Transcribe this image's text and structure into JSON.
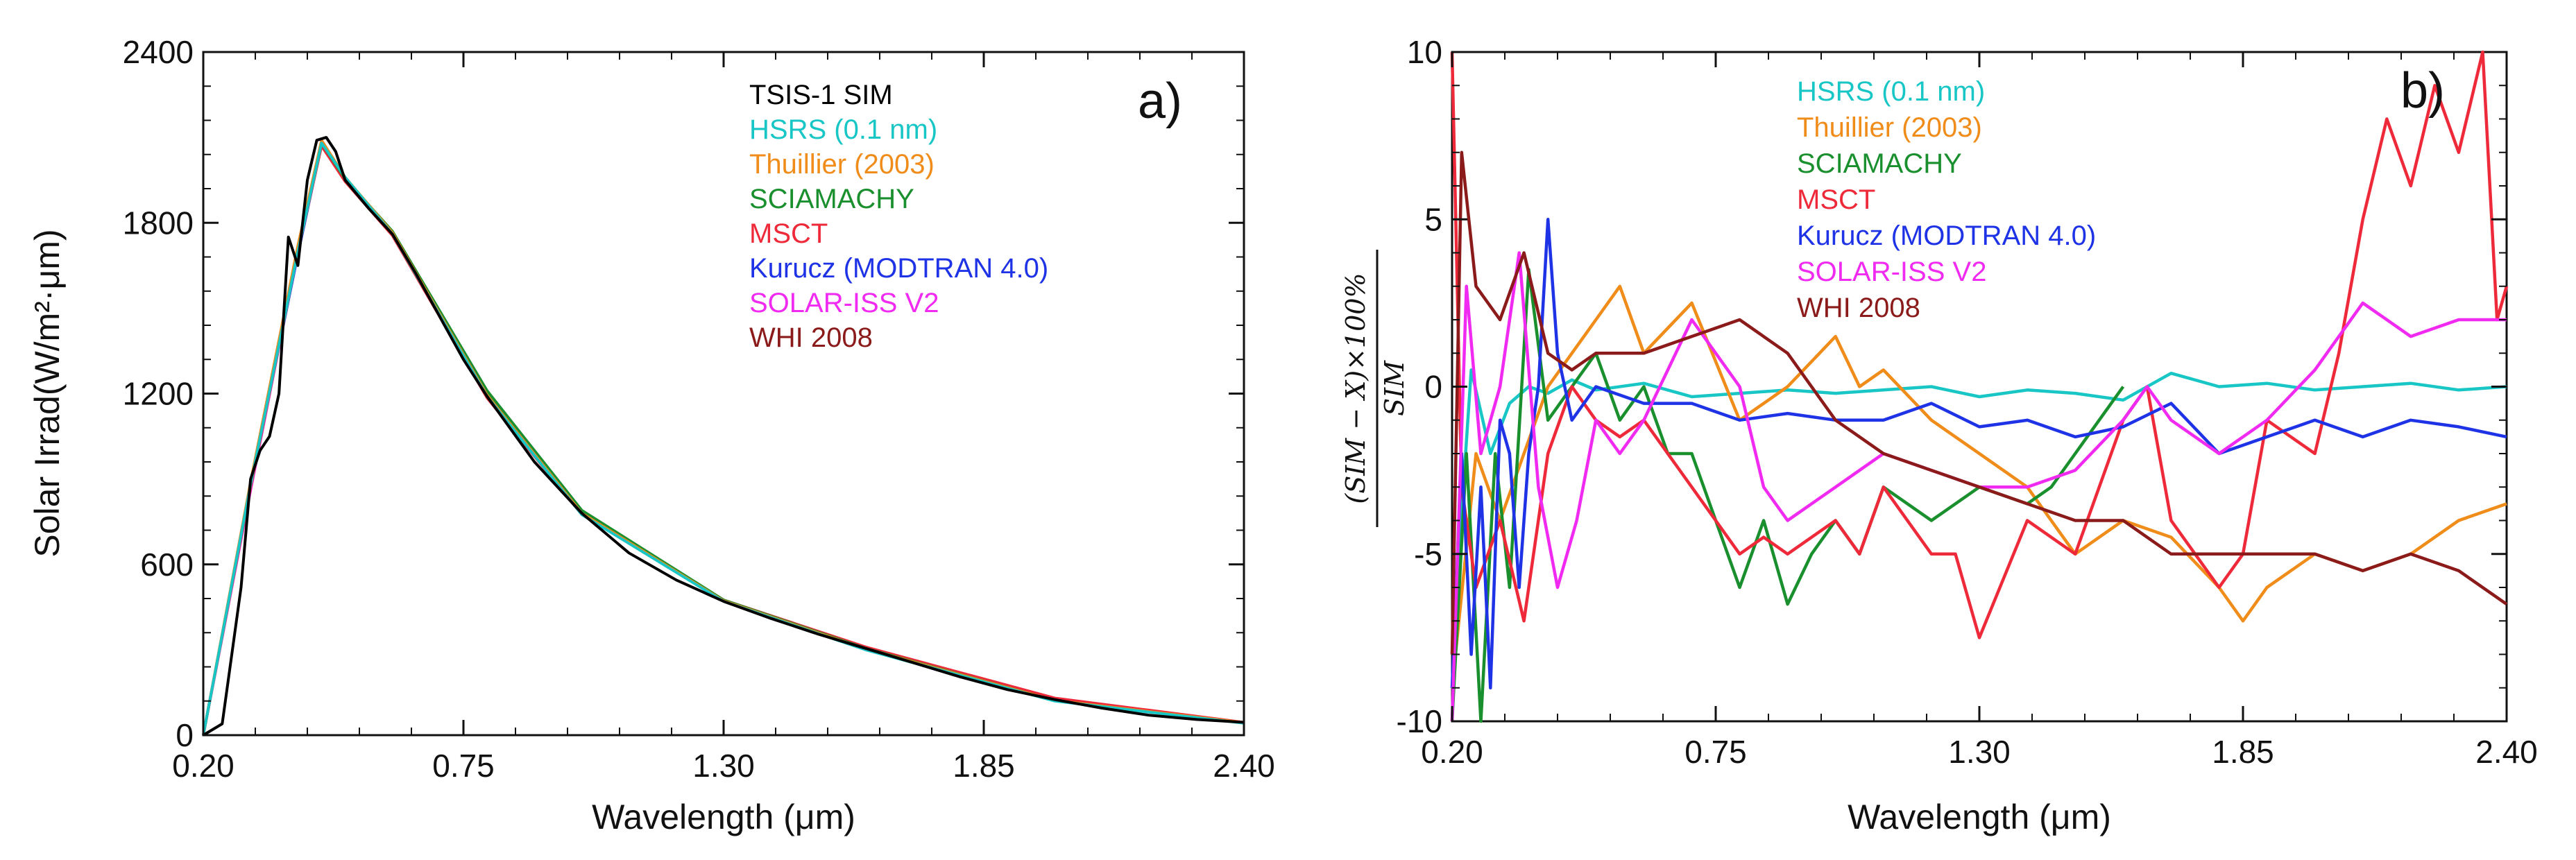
{
  "chart_data": [
    {
      "type": "line",
      "panel_label": "a)",
      "xlabel": "Wavelength (μm)",
      "ylabel": "Solar Irrad(W/m²·μm)",
      "xlim": [
        0.2,
        2.4
      ],
      "ylim": [
        0,
        2400
      ],
      "x_ticks": [
        "0.20",
        "0.75",
        "1.30",
        "1.85",
        "2.40"
      ],
      "y_ticks": [
        "0",
        "600",
        "1200",
        "1800",
        "2400"
      ],
      "series": [
        {
          "name": "TSIS-1 SIM",
          "color": "#000000",
          "x": [
            0.2,
            0.24,
            0.26,
            0.28,
            0.3,
            0.32,
            0.34,
            0.36,
            0.38,
            0.4,
            0.42,
            0.44,
            0.46,
            0.48,
            0.5,
            0.55,
            0.6,
            0.65,
            0.7,
            0.75,
            0.8,
            0.9,
            1.0,
            1.1,
            1.2,
            1.3,
            1.4,
            1.5,
            1.6,
            1.7,
            1.8,
            1.9,
            2.0,
            2.1,
            2.2,
            2.3,
            2.4
          ],
          "values": [
            0,
            40,
            280,
            520,
            900,
            1000,
            1050,
            1200,
            1750,
            1650,
            1950,
            2090,
            2100,
            2050,
            1950,
            1850,
            1760,
            1620,
            1470,
            1320,
            1190,
            960,
            780,
            640,
            545,
            470,
            410,
            355,
            305,
            255,
            205,
            160,
            125,
            95,
            70,
            55,
            45
          ]
        },
        {
          "name": "HSRS (0.1 nm)",
          "color": "#19c6c6",
          "x": [
            0.2,
            0.3,
            0.4,
            0.45,
            0.5,
            0.6,
            0.8,
            1.0,
            1.3,
            1.6,
            2.0,
            2.4
          ],
          "values": [
            0,
            880,
            1700,
            2080,
            1960,
            1760,
            1190,
            775,
            470,
            300,
            120,
            42
          ]
        },
        {
          "name": "Thuillier (2003)",
          "color": "#f08c1a",
          "x": [
            0.2,
            0.3,
            0.4,
            0.45,
            0.5,
            0.6,
            0.8,
            1.0,
            1.3,
            1.6,
            2.0,
            2.4
          ],
          "values": [
            0,
            890,
            1720,
            2090,
            1960,
            1765,
            1195,
            780,
            472,
            303,
            122,
            44
          ]
        },
        {
          "name": "SCIAMACHY",
          "color": "#1a8f2e",
          "x": [
            0.2,
            0.3,
            0.4,
            0.45,
            0.5,
            0.6,
            0.8,
            1.0,
            1.3,
            1.6,
            2.0,
            2.4
          ],
          "values": [
            0,
            880,
            1710,
            2080,
            1955,
            1770,
            1210,
            790,
            475,
            305,
            122,
            43
          ]
        },
        {
          "name": "MSCT",
          "color": "#ee2a3a",
          "x": [
            0.2,
            0.3,
            0.4,
            0.45,
            0.5,
            0.6,
            0.8,
            1.0,
            1.3,
            1.6,
            2.0,
            2.4
          ],
          "values": [
            0,
            870,
            1700,
            2070,
            1945,
            1755,
            1185,
            775,
            475,
            310,
            130,
            45
          ]
        },
        {
          "name": "Kurucz (MODTRAN 4.0)",
          "color": "#1f33e6",
          "x": [
            0.2,
            0.3,
            0.4,
            0.45,
            0.5,
            0.6,
            0.8,
            1.0,
            1.3,
            1.6,
            2.0,
            2.4
          ],
          "values": [
            0,
            880,
            1690,
            2075,
            1950,
            1760,
            1190,
            778,
            471,
            302,
            121,
            43
          ]
        },
        {
          "name": "SOLAR-ISS V2",
          "color": "#f02af0",
          "x": [
            0.2,
            0.3,
            0.4,
            0.45,
            0.5,
            0.6,
            0.8,
            1.0,
            1.3,
            1.6,
            2.0,
            2.4
          ],
          "values": [
            0,
            860,
            1700,
            2080,
            1950,
            1760,
            1190,
            778,
            472,
            302,
            121,
            43
          ]
        },
        {
          "name": "WHI 2008",
          "color": "#8b1a1a",
          "x": [
            0.2,
            0.3,
            0.4,
            0.45,
            0.5,
            0.6,
            0.8,
            1.0,
            1.3,
            1.6,
            2.0,
            2.4
          ],
          "values": [
            0,
            885,
            1715,
            2085,
            1958,
            1762,
            1192,
            779,
            472,
            302,
            121,
            43
          ]
        }
      ]
    },
    {
      "type": "line",
      "panel_label": "b)",
      "xlabel": "Wavelength (μm)",
      "ylabel_numerator": "(SIM − X)×100%",
      "ylabel_denominator": "SIM",
      "xlim": [
        0.2,
        2.4
      ],
      "ylim": [
        -10,
        10
      ],
      "x_ticks": [
        "0.20",
        "0.75",
        "1.30",
        "1.85",
        "2.40"
      ],
      "y_ticks": [
        "-10",
        "-5",
        "0",
        "5",
        "10"
      ],
      "series": [
        {
          "name": "HSRS (0.1 nm)",
          "color": "#19c6c6",
          "x": [
            0.2,
            0.24,
            0.28,
            0.32,
            0.36,
            0.4,
            0.45,
            0.5,
            0.6,
            0.7,
            0.8,
            0.9,
            1.0,
            1.1,
            1.2,
            1.3,
            1.4,
            1.5,
            1.6,
            1.7,
            1.8,
            1.9,
            2.0,
            2.1,
            2.2,
            2.3,
            2.4
          ],
          "values": [
            -8,
            0.5,
            -2,
            -0.5,
            0,
            -0.2,
            0.2,
            -0.1,
            0.1,
            -0.3,
            -0.2,
            -0.1,
            -0.2,
            -0.1,
            0,
            -0.3,
            -0.1,
            -0.2,
            -0.4,
            0.4,
            0,
            0.1,
            -0.1,
            0,
            0.1,
            -0.1,
            0
          ]
        },
        {
          "name": "Thuillier (2003)",
          "color": "#f08c1a",
          "x": [
            0.2,
            0.25,
            0.3,
            0.35,
            0.4,
            0.5,
            0.55,
            0.6,
            0.7,
            0.8,
            0.9,
            1.0,
            1.05,
            1.1,
            1.2,
            1.3,
            1.4,
            1.5,
            1.6,
            1.7,
            1.8,
            1.85,
            1.9,
            2.0,
            2.1,
            2.2,
            2.3,
            2.4
          ],
          "values": [
            -9,
            -2,
            -4,
            -2,
            0,
            2,
            3,
            1,
            2.5,
            -1,
            0,
            1.5,
            0,
            0.5,
            -1,
            -2,
            -3,
            -5,
            -4,
            -4.5,
            -6,
            -7,
            -6,
            -5,
            -5.5,
            -5,
            -4,
            -3.5
          ]
        },
        {
          "name": "SCIAMACHY",
          "color": "#1a8f2e",
          "x": [
            0.2,
            0.23,
            0.26,
            0.29,
            0.32,
            0.36,
            0.4,
            0.45,
            0.5,
            0.55,
            0.6,
            0.65,
            0.7,
            0.75,
            0.8,
            0.85,
            0.9,
            0.95,
            1.0,
            1.05,
            1.1,
            1.2,
            1.3,
            1.4,
            1.45,
            1.5,
            1.55,
            1.6
          ],
          "values": [
            -10,
            -2,
            -10,
            -2,
            -6,
            3.5,
            -1,
            0,
            1,
            -1,
            0,
            -2,
            -2,
            -4,
            -6,
            -4,
            -6.5,
            -5,
            -4,
            -5,
            -3,
            -4,
            -3,
            -3.5,
            -3,
            -2,
            -1,
            0
          ]
        },
        {
          "name": "MSCT",
          "color": "#ee2a3a",
          "x": [
            0.2,
            0.22,
            0.25,
            0.3,
            0.35,
            0.4,
            0.45,
            0.5,
            0.55,
            0.6,
            0.7,
            0.8,
            0.85,
            0.9,
            1.0,
            1.05,
            1.1,
            1.2,
            1.25,
            1.3,
            1.4,
            1.5,
            1.6,
            1.65,
            1.7,
            1.8,
            1.85,
            1.9,
            2.0,
            2.05,
            2.1,
            2.15,
            2.2,
            2.25,
            2.3,
            2.35,
            2.38,
            2.4
          ],
          "values": [
            10,
            -3,
            -6,
            -4,
            -7,
            -2,
            0,
            -1,
            -1.5,
            -1,
            -3,
            -5,
            -4.5,
            -5,
            -4,
            -5,
            -3,
            -5,
            -5,
            -7.5,
            -4,
            -5,
            -1,
            0,
            -4,
            -6,
            -5,
            -1,
            -2,
            1,
            5,
            8,
            6,
            9,
            7,
            10,
            2,
            3
          ]
        },
        {
          "name": "Kurucz (MODTRAN 4.0)",
          "color": "#1f33e6",
          "x": [
            0.2,
            0.22,
            0.24,
            0.26,
            0.28,
            0.3,
            0.32,
            0.34,
            0.36,
            0.38,
            0.4,
            0.42,
            0.45,
            0.5,
            0.6,
            0.7,
            0.8,
            0.9,
            1.0,
            1.1,
            1.2,
            1.3,
            1.4,
            1.5,
            1.6,
            1.7,
            1.8,
            1.9,
            2.0,
            2.1,
            2.2,
            2.3,
            2.4
          ],
          "values": [
            -9,
            -2,
            -8,
            -3,
            -9,
            -1,
            -2,
            -6,
            -2,
            0,
            5,
            1,
            -1,
            0,
            -0.5,
            -0.5,
            -1,
            -0.8,
            -1,
            -1,
            -0.5,
            -1.2,
            -1,
            -1.5,
            -1.2,
            -0.5,
            -2,
            -1.5,
            -1,
            -1.5,
            -1,
            -1.2,
            -1.5
          ]
        },
        {
          "name": "SOLAR-ISS V2",
          "color": "#f02af0",
          "x": [
            0.2,
            0.23,
            0.26,
            0.3,
            0.34,
            0.38,
            0.42,
            0.46,
            0.5,
            0.55,
            0.6,
            0.7,
            0.8,
            0.85,
            0.9,
            1.0,
            1.1,
            1.2,
            1.3,
            1.4,
            1.5,
            1.6,
            1.65,
            1.7,
            1.8,
            1.9,
            2.0,
            2.1,
            2.2,
            2.3,
            2.4
          ],
          "values": [
            -10,
            3,
            -2,
            0,
            4,
            -3,
            -6,
            -4,
            -1,
            -2,
            -1,
            2,
            0,
            -3,
            -4,
            -3,
            -2,
            -2.5,
            -3,
            -3,
            -2.5,
            -1,
            0,
            -1,
            -2,
            -1,
            0.5,
            2.5,
            1.5,
            2,
            2
          ]
        },
        {
          "name": "WHI 2008",
          "color": "#8b1a1a",
          "x": [
            0.2,
            0.22,
            0.25,
            0.3,
            0.35,
            0.4,
            0.45,
            0.5,
            0.6,
            0.7,
            0.8,
            0.9,
            1.0,
            1.1,
            1.2,
            1.3,
            1.4,
            1.5,
            1.6,
            1.7,
            1.8,
            1.9,
            2.0,
            2.1,
            2.2,
            2.3,
            2.4
          ],
          "values": [
            -8,
            7,
            3,
            2,
            4,
            1,
            0.5,
            1,
            1,
            1.5,
            2,
            1,
            -1,
            -2,
            -2.5,
            -3,
            -3.5,
            -4,
            -4,
            -5,
            -5,
            -5,
            -5,
            -5.5,
            -5,
            -5.5,
            -6.5
          ]
        }
      ]
    }
  ]
}
